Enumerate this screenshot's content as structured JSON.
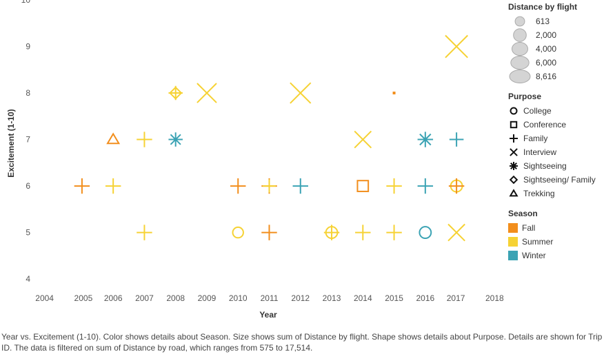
{
  "chart_data": {
    "type": "scatter",
    "title": "",
    "xlabel": "Year",
    "ylabel": "Excitement (1-10)",
    "xlim": [
      2003.5,
      2018.5
    ],
    "ylim": [
      3.75,
      10
    ],
    "x_ticks": [
      2004,
      2005,
      2006,
      2007,
      2008,
      2009,
      2010,
      2011,
      2012,
      2013,
      2014,
      2015,
      2016,
      2017,
      2018
    ],
    "y_ticks": [
      4,
      5,
      6,
      7,
      8,
      9,
      10
    ],
    "grid": false,
    "points": [
      {
        "year": 2005,
        "excitement": 6,
        "purpose": "Family",
        "season": "Fall",
        "distance": 2000
      },
      {
        "year": 2006,
        "excitement": 7,
        "purpose": "Trekking",
        "season": "Fall",
        "distance": 1500
      },
      {
        "year": 2006,
        "excitement": 6,
        "purpose": "Family",
        "season": "Summer",
        "distance": 2000
      },
      {
        "year": 2007,
        "excitement": 7,
        "purpose": "Family",
        "season": "Summer",
        "distance": 2000
      },
      {
        "year": 2007,
        "excitement": 5,
        "purpose": "Family",
        "season": "Summer",
        "distance": 2000
      },
      {
        "year": 2008,
        "excitement": 8,
        "purpose": "Sightseeing/ Family",
        "season": "Summer",
        "distance": 1500
      },
      {
        "year": 2008,
        "excitement": 8,
        "purpose": "Family",
        "season": "Summer",
        "distance": 1500
      },
      {
        "year": 2008,
        "excitement": 7,
        "purpose": "Sightseeing",
        "season": "Winter",
        "distance": 1500
      },
      {
        "year": 2009,
        "excitement": 8,
        "purpose": "Interview",
        "season": "Summer",
        "distance": 6000
      },
      {
        "year": 2010,
        "excitement": 6,
        "purpose": "Family",
        "season": "Fall",
        "distance": 2000
      },
      {
        "year": 2010,
        "excitement": 5,
        "purpose": "College",
        "season": "Summer",
        "distance": 1500
      },
      {
        "year": 2011,
        "excitement": 6,
        "purpose": "Family",
        "season": "Fall",
        "distance": 2000
      },
      {
        "year": 2011,
        "excitement": 6,
        "purpose": "Family",
        "season": "Summer",
        "distance": 1200
      },
      {
        "year": 2011,
        "excitement": 5,
        "purpose": "Family",
        "season": "Fall",
        "distance": 2000
      },
      {
        "year": 2012,
        "excitement": 8,
        "purpose": "Interview",
        "season": "Summer",
        "distance": 7000
      },
      {
        "year": 2012,
        "excitement": 6,
        "purpose": "Family",
        "season": "Winter",
        "distance": 2000
      },
      {
        "year": 2013,
        "excitement": 5,
        "purpose": "College",
        "season": "Summer",
        "distance": 2000
      },
      {
        "year": 2013,
        "excitement": 5,
        "purpose": "Family",
        "season": "Summer",
        "distance": 2000
      },
      {
        "year": 2014,
        "excitement": 7,
        "purpose": "Interview",
        "season": "Summer",
        "distance": 4000
      },
      {
        "year": 2014,
        "excitement": 6,
        "purpose": "Conference",
        "season": "Fall",
        "distance": 2000
      },
      {
        "year": 2014,
        "excitement": 5,
        "purpose": "Family",
        "season": "Summer",
        "distance": 2000
      },
      {
        "year": 2015,
        "excitement": 8,
        "purpose": "Conference",
        "season": "Fall",
        "distance": 613
      },
      {
        "year": 2015,
        "excitement": 6,
        "purpose": "Family",
        "season": "Summer",
        "distance": 2000
      },
      {
        "year": 2015,
        "excitement": 5,
        "purpose": "Family",
        "season": "Summer",
        "distance": 2000
      },
      {
        "year": 2016,
        "excitement": 7,
        "purpose": "Sightseeing",
        "season": "Winter",
        "distance": 2000
      },
      {
        "year": 2016,
        "excitement": 6,
        "purpose": "Family",
        "season": "Winter",
        "distance": 2000
      },
      {
        "year": 2016,
        "excitement": 5,
        "purpose": "College",
        "season": "Winter",
        "distance": 2000
      },
      {
        "year": 2017,
        "excitement": 9,
        "purpose": "Interview",
        "season": "Summer",
        "distance": 8616
      },
      {
        "year": 2017,
        "excitement": 7,
        "purpose": "Family",
        "season": "Winter",
        "distance": 1500
      },
      {
        "year": 2017,
        "excitement": 6,
        "purpose": "College",
        "season": "Summer",
        "distance": 2000
      },
      {
        "year": 2017,
        "excitement": 6,
        "purpose": "Family",
        "season": "Fall",
        "distance": 2000
      },
      {
        "year": 2017,
        "excitement": 5,
        "purpose": "Interview",
        "season": "Summer",
        "distance": 4000
      }
    ]
  },
  "legend": {
    "size_title": "Distance by flight",
    "size_items": [
      {
        "label": "613",
        "value": 613
      },
      {
        "label": "2,000",
        "value": 2000
      },
      {
        "label": "4,000",
        "value": 4000
      },
      {
        "label": "6,000",
        "value": 6000
      },
      {
        "label": "8,616",
        "value": 8616
      }
    ],
    "purpose_title": "Purpose",
    "purpose_items": [
      {
        "label": "College",
        "shape": "circle"
      },
      {
        "label": "Conference",
        "shape": "square"
      },
      {
        "label": "Family",
        "shape": "plus"
      },
      {
        "label": "Interview",
        "shape": "cross"
      },
      {
        "label": "Sightseeing",
        "shape": "asterisk"
      },
      {
        "label": "Sightseeing/ Family",
        "shape": "diamond"
      },
      {
        "label": "Trekking",
        "shape": "triangle"
      }
    ],
    "season_title": "Season",
    "season_items": [
      {
        "label": "Fall",
        "color": "#f28e1c"
      },
      {
        "label": "Summer",
        "color": "#f6d234"
      },
      {
        "label": "Winter",
        "color": "#3ba3b4"
      }
    ]
  },
  "caption": "Year vs. Excitement (1-10).  Color shows details about Season.  Size shows sum of Distance by flight.  Shape shows details about Purpose.  Details are shown for Trip ID. The data is filtered on sum of Distance by road, which ranges from 575 to 17,514."
}
